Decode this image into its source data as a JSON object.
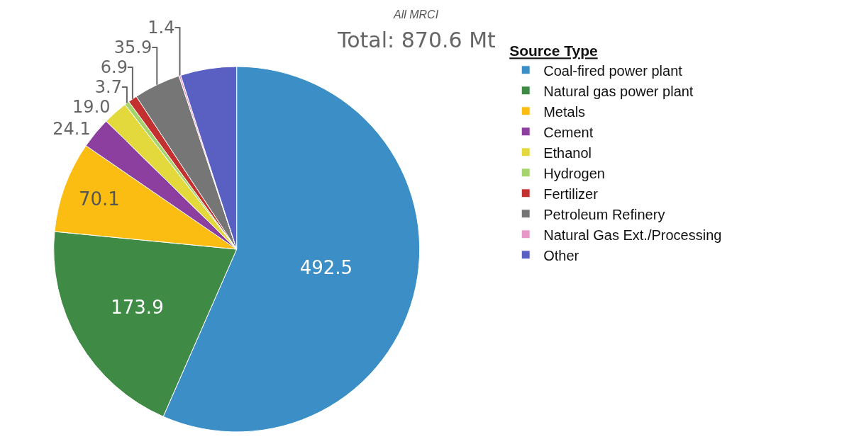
{
  "chart_data": {
    "type": "pie",
    "title": "All MRCI",
    "subtitle": "Total: 870.6 Mt",
    "legend_title": "Source Type",
    "legend": "right",
    "categories": [
      "Coal-fired power plant",
      "Natural gas power plant",
      "Metals",
      "Cement",
      "Ethanol",
      "Hydrogen",
      "Fertilizer",
      "Petroleum Refinery",
      "Natural Gas Ext./Processing",
      "Other"
    ],
    "values": [
      492.5,
      173.9,
      70.1,
      24.1,
      19.0,
      3.7,
      6.9,
      35.9,
      1.4,
      43.1
    ],
    "value_labels": [
      "492.5",
      "173.9",
      "70.1",
      "24.1",
      "19.0",
      "3.7",
      "6.9",
      "35.9",
      "1.4",
      null
    ],
    "colors": [
      "#3b8ec6",
      "#3f8a45",
      "#fbbd12",
      "#8c3f9e",
      "#e3d83c",
      "#a6d46c",
      "#c2312f",
      "#767676",
      "#e898c6",
      "#5a5fc2"
    ]
  }
}
